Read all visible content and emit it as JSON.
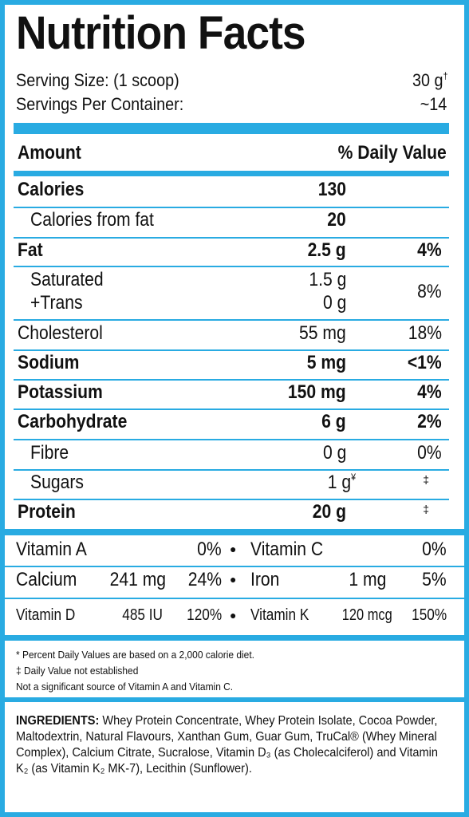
{
  "header": {
    "title": "Nutrition Facts",
    "serving_size_label": "Serving Size: (1 scoop)",
    "serving_size_value": "30 g",
    "serving_size_mark": "†",
    "servings_label": "Servings Per Container:",
    "servings_value": "~14"
  },
  "columns": {
    "amount": "Amount",
    "daily_value": "% Daily Value"
  },
  "rows": [
    {
      "label": "Calories",
      "amount": "130",
      "dv": ""
    },
    {
      "label": "Calories from fat",
      "amount": "20",
      "dv": ""
    },
    {
      "label": "Fat",
      "amount": "2.5 g",
      "dv": "4%"
    },
    {
      "label": "Saturated",
      "amount": "1.5 g",
      "dv": "8%"
    },
    {
      "label": "+Trans",
      "amount": "0 g",
      "dv": ""
    },
    {
      "label": "Cholesterol",
      "amount": "55 mg",
      "dv": "18%"
    },
    {
      "label": "Sodium",
      "amount": "5 mg",
      "dv": "<1%"
    },
    {
      "label": "Potassium",
      "amount": "150 mg",
      "dv": "4%"
    },
    {
      "label": "Carbohydrate",
      "amount": "6 g",
      "dv": "2%"
    },
    {
      "label": "Fibre",
      "amount": "0 g",
      "dv": "0%"
    },
    {
      "label": "Sugars",
      "amount": "1 g",
      "amount_mark": "¥",
      "dv": "‡"
    },
    {
      "label": "Protein",
      "amount": "20 g",
      "dv": "‡"
    }
  ],
  "vitamins": [
    {
      "name": "Vitamin A",
      "amount": "",
      "dv": "0%"
    },
    {
      "name": "Vitamin C",
      "amount": "",
      "dv": "0%"
    },
    {
      "name": "Calcium",
      "amount": "241 mg",
      "dv": "24%"
    },
    {
      "name": "Iron",
      "amount": "1 mg",
      "dv": "5%"
    },
    {
      "name": "Vitamin D",
      "amount": "485 IU",
      "dv": "120%"
    },
    {
      "name": "Vitamin K",
      "amount": "120 mcg",
      "dv": "150%"
    }
  ],
  "bullet": "●",
  "footnotes": [
    "* Percent Daily Values are based on a 2,000 calorie diet.",
    "‡ Daily Value not established",
    "Not a significant source of Vitamin A and Vitamin C."
  ],
  "ingredients": {
    "label": "INGREDIENTS:",
    "text": "Whey Protein Concentrate, Whey Protein Isolate, Cocoa Powder, Maltodextrin, Natural Flavours, Xanthan Gum, Guar Gum, TruCal® (Whey Mineral Complex), Calcium Citrate, Sucralose, Vitamin D₃ (as Cholecalciferol) and Vitamin K₂ (as Vitamin K₂ MK-7), Lecithin (Sunflower)."
  },
  "colors": {
    "accent": "#29abe2",
    "text": "#111111"
  }
}
